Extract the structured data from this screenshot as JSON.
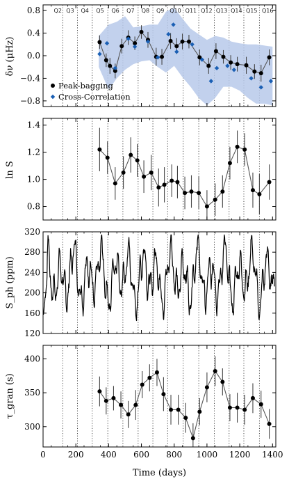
{
  "chart_data": [
    {
      "type": "scatter",
      "ylabel": "δν (μHz)",
      "ylim": [
        -0.9,
        0.9
      ],
      "yticks": [
        -0.8,
        -0.4,
        0.0,
        0.4,
        0.8
      ],
      "ytick_labels": [
        "−0.8",
        "−0.4",
        "0.0",
        "0.4",
        "0.8"
      ],
      "quarters": [
        "Q2",
        "Q3",
        "Q4",
        "Q5",
        "Q6",
        "Q7",
        "Q8",
        "Q9",
        "Q10",
        "Q11",
        "Q12",
        "Q13",
        "Q14",
        "Q15",
        "Q16"
      ],
      "quarter_boundaries": [
        120,
        210,
        300,
        395,
        487,
        580,
        670,
        760,
        855,
        950,
        1045,
        1135,
        1225,
        1320
      ],
      "band": {
        "x": [
          340,
          400,
          450,
          500,
          550,
          600,
          650,
          700,
          750,
          800,
          850,
          900,
          950,
          1000,
          1050,
          1100,
          1150,
          1200,
          1250,
          1300,
          1350,
          1400
        ],
        "upper": [
          0.35,
          0.55,
          0.6,
          0.7,
          0.5,
          0.52,
          0.55,
          0.55,
          0.78,
          0.85,
          0.66,
          0.48,
          0.38,
          0.28,
          0.35,
          0.32,
          0.25,
          0.22,
          0.2,
          0.2,
          0.18,
          0.16
        ],
        "lower": [
          -0.2,
          -0.6,
          -0.4,
          -0.25,
          -0.15,
          -0.1,
          -0.08,
          -0.2,
          -0.3,
          -0.18,
          -0.38,
          -0.55,
          -0.75,
          -0.88,
          -0.75,
          -0.55,
          -0.55,
          -0.62,
          -0.75,
          -0.85,
          -0.85,
          -0.88
        ]
      },
      "series": [
        {
          "name": "Peak-bagging",
          "x": [
            345,
            385,
            408,
            440,
            480,
            520,
            560,
            600,
            640,
            690,
            725,
            778,
            815,
            850,
            890,
            955,
            1010,
            1055,
            1100,
            1145,
            1185,
            1240,
            1290,
            1330,
            1380
          ],
          "y": [
            0.24,
            -0.08,
            -0.18,
            -0.27,
            0.17,
            0.32,
            0.22,
            0.42,
            0.28,
            -0.02,
            -0.02,
            0.26,
            0.17,
            0.25,
            0.25,
            -0.03,
            -0.18,
            0.08,
            -0.02,
            -0.12,
            -0.15,
            -0.17,
            -0.28,
            -0.31,
            -0.03
          ],
          "err": [
            0.12,
            0.12,
            0.14,
            0.13,
            0.13,
            0.13,
            0.12,
            0.12,
            0.14,
            0.16,
            0.14,
            0.14,
            0.14,
            0.14,
            0.12,
            0.14,
            0.14,
            0.14,
            0.12,
            0.13,
            0.13,
            0.15,
            0.13,
            0.15,
            0.14
          ]
        },
        {
          "name": "Cross-Correlation",
          "x": [
            345,
            390,
            440,
            520,
            560,
            640,
            700,
            765,
            795,
            815,
            910,
            970,
            1025,
            1060,
            1125,
            1165,
            1270,
            1330,
            1390
          ],
          "y": [
            0.03,
            0.22,
            -0.22,
            0.3,
            0.16,
            0.25,
            -0.03,
            0.38,
            0.55,
            0.07,
            0.2,
            -0.07,
            -0.45,
            -0.22,
            -0.18,
            -0.25,
            -0.4,
            -0.56,
            -0.45
          ]
        }
      ]
    },
    {
      "type": "line",
      "ylabel": "ln S",
      "ylim": [
        0.7,
        1.45
      ],
      "yticks": [
        0.8,
        1.0,
        1.2,
        1.4
      ],
      "ytick_labels": [
        "0.8",
        "1.0",
        "1.2",
        "1.4"
      ],
      "series": [
        {
          "x": [
            345,
            393,
            440,
            490,
            535,
            575,
            615,
            660,
            705,
            740,
            785,
            820,
            865,
            905,
            950,
            1000,
            1050,
            1095,
            1140,
            1185,
            1230,
            1280,
            1320,
            1380
          ],
          "y": [
            1.22,
            1.16,
            0.97,
            1.05,
            1.18,
            1.14,
            1.02,
            1.05,
            0.94,
            0.96,
            0.99,
            0.98,
            0.9,
            0.91,
            0.9,
            0.8,
            0.85,
            0.91,
            1.12,
            1.24,
            1.22,
            0.92,
            0.89,
            0.98
          ]
        }
      ],
      "err": [
        0.16,
        0.12,
        0.12,
        0.12,
        0.13,
        0.12,
        0.12,
        0.13,
        0.14,
        0.13,
        0.12,
        0.12,
        0.12,
        0.12,
        0.12,
        0.12,
        0.12,
        0.12,
        0.12,
        0.12,
        0.12,
        0.13,
        0.15,
        0.13
      ]
    },
    {
      "type": "line",
      "ylabel": "S_ph (ppm)",
      "ylim": [
        120,
        320
      ],
      "yticks": [
        120,
        160,
        200,
        240,
        280,
        320
      ],
      "ytick_labels": [
        "120",
        "160",
        "200",
        "240",
        "280",
        "320"
      ]
    },
    {
      "type": "line",
      "ylabel": "τ_gran (s)",
      "ylim": [
        270,
        420
      ],
      "yticks": [
        300,
        350,
        400
      ],
      "ytick_labels": [
        "300",
        "350",
        "400"
      ],
      "xlabel": "Time (days)",
      "xlim": [
        0,
        1420
      ],
      "xticks": [
        0,
        200,
        400,
        600,
        800,
        1000,
        1200,
        1400
      ],
      "xtick_labels": [
        "0",
        "200",
        "400",
        "600",
        "800",
        "1000",
        "1200",
        "1400"
      ],
      "series": [
        {
          "x": [
            345,
            385,
            430,
            475,
            520,
            565,
            605,
            650,
            695,
            735,
            780,
            825,
            870,
            915,
            955,
            1000,
            1050,
            1095,
            1140,
            1185,
            1230,
            1280,
            1330,
            1380
          ],
          "y": [
            352,
            338,
            342,
            332,
            318,
            332,
            362,
            372,
            380,
            348,
            325,
            325,
            313,
            283,
            322,
            358,
            382,
            366,
            328,
            328,
            325,
            342,
            333,
            304
          ],
          "err": [
            22,
            20,
            18,
            20,
            20,
            22,
            20,
            20,
            20,
            25,
            22,
            22,
            22,
            22,
            20,
            22,
            22,
            20,
            20,
            22,
            22,
            22,
            20,
            22
          ]
        }
      ]
    }
  ],
  "legend": {
    "items": [
      {
        "label": "Peak-bagging",
        "marker": "circle",
        "color": "#000000"
      },
      {
        "label": "Cross-Correlation",
        "marker": "diamond",
        "color": "#1a5fb4"
      }
    ]
  },
  "colors": {
    "band": "#b7c9ea",
    "cross": "#1a5fb4",
    "line": "#555555",
    "points": "#000000"
  }
}
